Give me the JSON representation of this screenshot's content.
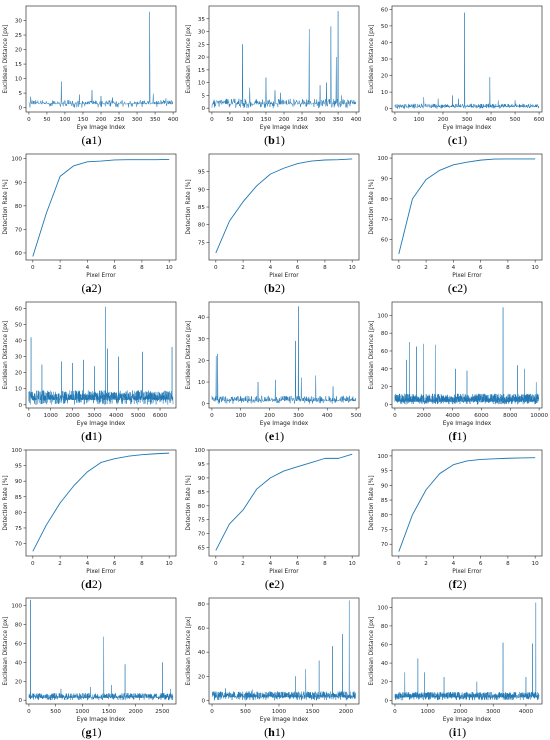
{
  "line_color": "#1f77b4",
  "chart_data": [
    {
      "id": "a1",
      "type": "line",
      "caption_letter": "a",
      "caption_num": "1",
      "xlabel": "Eye Image Index",
      "ylabel": "Euclidean Distance [px]",
      "xlim": [
        -8,
        408
      ],
      "ylim": [
        -1.5,
        35
      ],
      "xticks": [
        0,
        50,
        100,
        150,
        200,
        250,
        300,
        350,
        400
      ],
      "yticks": [
        0,
        5,
        10,
        15,
        20,
        25,
        30
      ],
      "n": 400,
      "baseline": 1.2,
      "noise": 1.4,
      "spikes": [
        [
          5,
          3.8
        ],
        [
          90,
          9
        ],
        [
          140,
          4.5
        ],
        [
          175,
          6
        ],
        [
          200,
          4
        ],
        [
          232,
          3.5
        ],
        [
          335,
          33
        ],
        [
          345,
          4.8
        ],
        [
          380,
          3.2
        ]
      ]
    },
    {
      "id": "b1",
      "type": "line",
      "caption_letter": "b",
      "caption_num": "1",
      "xlabel": "Eye Image Index",
      "ylabel": "Euclidean Distance [px]",
      "xlim": [
        -8,
        408
      ],
      "ylim": [
        -1.5,
        40
      ],
      "xticks": [
        0,
        50,
        100,
        150,
        200,
        250,
        300,
        350,
        400
      ],
      "yticks": [
        0,
        5,
        10,
        15,
        20,
        25,
        30,
        35
      ],
      "n": 400,
      "baseline": 1.5,
      "noise": 2.2,
      "spikes": [
        [
          85,
          25
        ],
        [
          105,
          8
        ],
        [
          150,
          12
        ],
        [
          175,
          7
        ],
        [
          190,
          6
        ],
        [
          270,
          31
        ],
        [
          300,
          9
        ],
        [
          318,
          10
        ],
        [
          330,
          32
        ],
        [
          345,
          20
        ],
        [
          350,
          38
        ],
        [
          360,
          5
        ]
      ]
    },
    {
      "id": "c1",
      "type": "line",
      "caption_letter": "c",
      "caption_num": "1",
      "xlabel": "Eye Image Index",
      "ylabel": "Euclidean Distance [px]",
      "xlim": [
        -12,
        612
      ],
      "ylim": [
        -2,
        62
      ],
      "xticks": [
        0,
        100,
        200,
        300,
        400,
        500,
        600
      ],
      "yticks": [
        0,
        10,
        20,
        30,
        40,
        50,
        60
      ],
      "n": 600,
      "baseline": 1.0,
      "noise": 2.0,
      "spikes": [
        [
          120,
          7
        ],
        [
          180,
          6
        ],
        [
          240,
          8
        ],
        [
          265,
          6
        ],
        [
          290,
          58
        ],
        [
          395,
          19
        ],
        [
          430,
          5
        ],
        [
          500,
          5
        ]
      ]
    },
    {
      "id": "a2",
      "type": "line",
      "caption_letter": "a",
      "caption_num": "2",
      "xlabel": "Pixel Error",
      "ylabel": "Detection Rate [%]",
      "xlim": [
        -0.5,
        10.5
      ],
      "ylim": [
        57,
        102
      ],
      "xticks": [
        0,
        2,
        4,
        6,
        8,
        10
      ],
      "yticks": [
        60,
        70,
        80,
        90,
        100
      ],
      "x": [
        0,
        1,
        2,
        3,
        4,
        5,
        6,
        7,
        8,
        9,
        10
      ],
      "y": [
        58.5,
        77,
        92.5,
        97,
        98.7,
        99,
        99.5,
        99.6,
        99.6,
        99.6,
        99.7
      ]
    },
    {
      "id": "b2",
      "type": "line",
      "caption_letter": "b",
      "caption_num": "2",
      "xlabel": "Pixel Error",
      "ylabel": "Detection Rate [%]",
      "xlim": [
        -0.5,
        10.5
      ],
      "ylim": [
        70,
        100
      ],
      "xticks": [
        0,
        2,
        4,
        6,
        8,
        10
      ],
      "yticks": [
        75,
        80,
        85,
        90,
        95
      ],
      "x": [
        0,
        1,
        2,
        3,
        4,
        5,
        6,
        7,
        8,
        9,
        10
      ],
      "y": [
        72,
        81,
        86.5,
        91,
        94.3,
        96,
        97.3,
        98,
        98.3,
        98.4,
        98.6
      ]
    },
    {
      "id": "c2",
      "type": "line",
      "caption_letter": "c",
      "caption_num": "2",
      "xlabel": "Pixel Error",
      "ylabel": "Detection Rate [%]",
      "xlim": [
        -0.5,
        10.5
      ],
      "ylim": [
        50,
        102
      ],
      "xticks": [
        0,
        2,
        4,
        6,
        8,
        10
      ],
      "yticks": [
        60,
        70,
        80,
        90,
        100
      ],
      "x": [
        0,
        1,
        2,
        3,
        4,
        5,
        6,
        7,
        8,
        9,
        10
      ],
      "y": [
        53,
        80,
        89.5,
        94,
        96.7,
        98,
        99,
        99.5,
        99.6,
        99.6,
        99.6
      ]
    },
    {
      "id": "d1",
      "type": "line",
      "caption_letter": "d",
      "caption_num": "1",
      "xlabel": "Eye Image Index",
      "ylabel": "Euclidean Distance [px]",
      "xlim": [
        -130,
        6730
      ],
      "ylim": [
        -2,
        64
      ],
      "xticks": [
        0,
        1000,
        2000,
        3000,
        4000,
        5000,
        6000
      ],
      "yticks": [
        0,
        10,
        20,
        30,
        40,
        50,
        60
      ],
      "n": 1300,
      "xmax": 6600,
      "baseline": 3.0,
      "noise": 6.0,
      "spikes": [
        [
          100,
          42
        ],
        [
          600,
          25
        ],
        [
          1500,
          27
        ],
        [
          2000,
          26
        ],
        [
          2500,
          28
        ],
        [
          3000,
          24
        ],
        [
          3500,
          61
        ],
        [
          3600,
          35
        ],
        [
          4100,
          30
        ],
        [
          5200,
          33
        ],
        [
          6550,
          36
        ]
      ]
    },
    {
      "id": "e1",
      "type": "line",
      "caption_letter": "e",
      "caption_num": "1",
      "xlabel": "Eye Image Index",
      "ylabel": "Euclidean Distance [px]",
      "xlim": [
        -10,
        510
      ],
      "ylim": [
        -2,
        47
      ],
      "xticks": [
        0,
        100,
        200,
        300,
        400,
        500
      ],
      "yticks": [
        0,
        10,
        20,
        30,
        40
      ],
      "n": 500,
      "baseline": 1.2,
      "noise": 2.5,
      "spikes": [
        [
          15,
          22
        ],
        [
          20,
          23
        ],
        [
          160,
          10
        ],
        [
          220,
          11
        ],
        [
          290,
          29
        ],
        [
          300,
          45
        ],
        [
          310,
          12
        ],
        [
          360,
          13
        ],
        [
          420,
          8
        ]
      ]
    },
    {
      "id": "f1",
      "type": "line",
      "caption_letter": "f",
      "caption_num": "1",
      "xlabel": "Eye Image Index",
      "ylabel": "Euclidean Distance [px]",
      "xlim": [
        -200,
        10200
      ],
      "ylim": [
        -4,
        115
      ],
      "xticks": [
        0,
        2000,
        4000,
        6000,
        8000,
        10000
      ],
      "yticks": [
        0,
        20,
        40,
        60,
        80,
        100
      ],
      "n": 1400,
      "xmax": 10000,
      "baseline": 3.0,
      "noise": 9.0,
      "spikes": [
        [
          800,
          50
        ],
        [
          1000,
          70
        ],
        [
          1500,
          65
        ],
        [
          2000,
          68
        ],
        [
          2800,
          67
        ],
        [
          4200,
          40
        ],
        [
          5000,
          38
        ],
        [
          7500,
          109
        ],
        [
          8500,
          44
        ],
        [
          9000,
          40
        ],
        [
          9800,
          25
        ]
      ]
    },
    {
      "id": "d2",
      "type": "line",
      "caption_letter": "d",
      "caption_num": "2",
      "xlabel": "Pixel Error",
      "ylabel": "Detection Rate [%]",
      "xlim": [
        -0.5,
        10.5
      ],
      "ylim": [
        66,
        100
      ],
      "xticks": [
        0,
        2,
        4,
        6,
        8,
        10
      ],
      "yticks": [
        70,
        75,
        80,
        85,
        90,
        95,
        100
      ],
      "x": [
        0,
        1,
        2,
        3,
        4,
        5,
        6,
        7,
        8,
        9,
        10
      ],
      "y": [
        67.5,
        76,
        83,
        88.5,
        93,
        96,
        97.2,
        98,
        98.5,
        98.8,
        99
      ]
    },
    {
      "id": "e2",
      "type": "line",
      "caption_letter": "e",
      "caption_num": "2",
      "xlabel": "Pixel Error",
      "ylabel": "Detection Rate [%]",
      "xlim": [
        -0.5,
        10.5
      ],
      "ylim": [
        62,
        100
      ],
      "xticks": [
        0,
        2,
        4,
        6,
        8,
        10
      ],
      "yticks": [
        65,
        70,
        75,
        80,
        85,
        90,
        95,
        100
      ],
      "x": [
        0,
        1,
        2,
        3,
        4,
        5,
        6,
        7,
        8,
        9,
        10
      ],
      "y": [
        64,
        73.5,
        78.5,
        86,
        90,
        92.5,
        94,
        95.5,
        97,
        97,
        98.5
      ]
    },
    {
      "id": "f2",
      "type": "line",
      "caption_letter": "f",
      "caption_num": "2",
      "xlabel": "Pixel Error",
      "ylabel": "Detection Rate [%]",
      "xlim": [
        -0.5,
        10.5
      ],
      "ylim": [
        66,
        102
      ],
      "xticks": [
        0,
        2,
        4,
        6,
        8,
        10
      ],
      "yticks": [
        70,
        75,
        80,
        85,
        90,
        95,
        100
      ],
      "x": [
        0,
        1,
        2,
        3,
        4,
        5,
        6,
        7,
        8,
        9,
        10
      ],
      "y": [
        67.5,
        80,
        88.5,
        94,
        97,
        98.3,
        98.8,
        99,
        99.2,
        99.3,
        99.4
      ]
    },
    {
      "id": "g1",
      "type": "line",
      "caption_letter": "g",
      "caption_num": "1",
      "xlabel": "Eye Image Index",
      "ylabel": "Euclidean Distance [px]",
      "xlim": [
        -55,
        2755
      ],
      "ylim": [
        -4,
        108
      ],
      "xticks": [
        0,
        500,
        1000,
        1500,
        2000,
        2500
      ],
      "yticks": [
        0,
        20,
        40,
        60,
        80,
        100
      ],
      "n": 1000,
      "xmax": 2700,
      "baseline": 2.5,
      "noise": 5.0,
      "spikes": [
        [
          30,
          106
        ],
        [
          600,
          12
        ],
        [
          1150,
          14
        ],
        [
          1400,
          67
        ],
        [
          1550,
          16
        ],
        [
          1800,
          38
        ],
        [
          2500,
          40
        ],
        [
          2650,
          12
        ]
      ]
    },
    {
      "id": "h1",
      "type": "line",
      "caption_letter": "h",
      "caption_num": "1",
      "xlabel": "Eye Image Index",
      "ylabel": "Euclidean Distance [px]",
      "xlim": [
        -45,
        2195
      ],
      "ylim": [
        -3,
        85
      ],
      "xticks": [
        0,
        500,
        1000,
        1500,
        2000
      ],
      "yticks": [
        0,
        20,
        40,
        60,
        80
      ],
      "n": 1000,
      "xmax": 2150,
      "baseline": 2.5,
      "noise": 5.0,
      "spikes": [
        [
          200,
          10
        ],
        [
          600,
          9
        ],
        [
          1250,
          20
        ],
        [
          1400,
          26
        ],
        [
          1600,
          33
        ],
        [
          1800,
          45
        ],
        [
          1950,
          55
        ],
        [
          2050,
          83
        ]
      ]
    },
    {
      "id": "i1",
      "type": "line",
      "caption_letter": "i",
      "caption_num": "1",
      "xlabel": "Eye Image Index",
      "ylabel": "Euclidean Distance [px]",
      "xlim": [
        -90,
        4490
      ],
      "ylim": [
        -4,
        110
      ],
      "xticks": [
        0,
        1000,
        2000,
        3000,
        4000
      ],
      "yticks": [
        0,
        20,
        40,
        60,
        80,
        100
      ],
      "n": 1200,
      "xmax": 4400,
      "baseline": 3.0,
      "noise": 6.0,
      "spikes": [
        [
          300,
          30
        ],
        [
          700,
          45
        ],
        [
          900,
          30
        ],
        [
          1500,
          25
        ],
        [
          2500,
          20
        ],
        [
          3300,
          62
        ],
        [
          4000,
          25
        ],
        [
          4200,
          61
        ],
        [
          4300,
          105
        ]
      ]
    }
  ]
}
